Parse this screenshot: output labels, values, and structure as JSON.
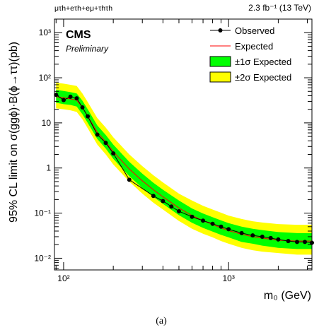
{
  "chart_data": {
    "type": "line",
    "x_scale": "log",
    "y_scale": "log",
    "xlim": [
      88,
      3200
    ],
    "ylim": [
      0.0055,
      2000
    ],
    "channels_label": "μτh+eτh+eμ+τhτh",
    "lumi_label": "2.3 fb⁻¹ (13 TeV)",
    "experiment": "CMS",
    "status": "Preliminary",
    "xlabel": "m₀ (GeV)",
    "ylabel": "95% CL limit on σ(ggϕ)·B(ϕ→ττ)(pb)",
    "caption": "(a)",
    "x_ticks": [
      {
        "value": 100,
        "label": "10²"
      },
      {
        "value": 1000,
        "label": "10³"
      }
    ],
    "y_ticks": [
      {
        "value": 0.01,
        "label": "10⁻²"
      },
      {
        "value": 0.1,
        "label": "10⁻¹"
      },
      {
        "value": 1,
        "label": "1"
      },
      {
        "value": 10,
        "label": "10"
      },
      {
        "value": 100,
        "label": "10²"
      },
      {
        "value": 1000,
        "label": "10³"
      }
    ],
    "legend": [
      {
        "key": "observed",
        "label": "Observed"
      },
      {
        "key": "expected",
        "label": "Expected"
      },
      {
        "key": "band1",
        "label": "±1σ Expected"
      },
      {
        "key": "band2",
        "label": "±2σ Expected"
      }
    ],
    "colors": {
      "observed": "#000000",
      "expected": "#ff0000",
      "band1": "#00ff00",
      "band2": "#ffff00"
    },
    "series": [
      {
        "key": "observed",
        "x": [
          90,
          100,
          110,
          120,
          130,
          140,
          160,
          180,
          200,
          250,
          350,
          400,
          450,
          500,
          600,
          700,
          800,
          900,
          1000,
          1200,
          1400,
          1600,
          1800,
          2000,
          2300,
          2600,
          2900,
          3200
        ],
        "y": [
          42,
          32,
          38,
          35,
          22,
          14,
          5.5,
          3.6,
          2.1,
          0.55,
          0.24,
          0.185,
          0.14,
          0.11,
          0.083,
          0.068,
          0.058,
          0.05,
          0.044,
          0.036,
          0.032,
          0.03,
          0.028,
          0.026,
          0.024,
          0.023,
          0.023,
          0.022
        ]
      },
      {
        "key": "expected",
        "x": [
          90,
          100,
          110,
          120,
          130,
          140,
          160,
          180,
          200,
          250,
          300,
          350,
          400,
          500,
          600,
          700,
          800,
          900,
          1000,
          1200,
          1400,
          1600,
          2000,
          2600,
          3200
        ],
        "y": [
          38,
          36,
          34,
          32,
          22,
          14,
          6.2,
          3.8,
          2.3,
          0.95,
          0.52,
          0.33,
          0.23,
          0.13,
          0.088,
          0.068,
          0.056,
          0.047,
          0.041,
          0.034,
          0.03,
          0.028,
          0.025,
          0.024,
          0.024
        ]
      },
      {
        "key": "band1",
        "x": [
          90,
          100,
          110,
          120,
          130,
          140,
          160,
          180,
          200,
          250,
          300,
          350,
          400,
          500,
          600,
          700,
          800,
          900,
          1000,
          1200,
          1400,
          1600,
          2000,
          2600,
          3200
        ],
        "low": [
          28,
          26,
          25,
          23,
          15.5,
          10,
          4.4,
          2.7,
          1.6,
          0.66,
          0.36,
          0.23,
          0.16,
          0.09,
          0.061,
          0.047,
          0.039,
          0.033,
          0.029,
          0.023,
          0.021,
          0.019,
          0.017,
          0.016,
          0.016
        ],
        "high": [
          54,
          51,
          48,
          45,
          31,
          20,
          8.8,
          5.4,
          3.3,
          1.37,
          0.75,
          0.47,
          0.33,
          0.19,
          0.127,
          0.098,
          0.081,
          0.069,
          0.06,
          0.05,
          0.045,
          0.042,
          0.038,
          0.036,
          0.036
        ]
      },
      {
        "key": "band2",
        "x": [
          90,
          100,
          110,
          120,
          130,
          140,
          160,
          180,
          200,
          250,
          300,
          350,
          400,
          500,
          600,
          700,
          800,
          900,
          1000,
          1200,
          1400,
          1600,
          2000,
          2600,
          3200
        ],
        "low": [
          21,
          20,
          19,
          17.5,
          12,
          7.6,
          3.3,
          2.0,
          1.2,
          0.5,
          0.27,
          0.17,
          0.12,
          0.067,
          0.045,
          0.035,
          0.029,
          0.024,
          0.021,
          0.017,
          0.015,
          0.014,
          0.013,
          0.012,
          0.012
        ],
        "high": [
          78,
          74,
          70,
          66,
          45,
          29,
          12.8,
          7.9,
          4.8,
          2.0,
          1.1,
          0.69,
          0.48,
          0.27,
          0.19,
          0.145,
          0.12,
          0.102,
          0.088,
          0.074,
          0.066,
          0.062,
          0.057,
          0.055,
          0.055
        ]
      }
    ]
  }
}
